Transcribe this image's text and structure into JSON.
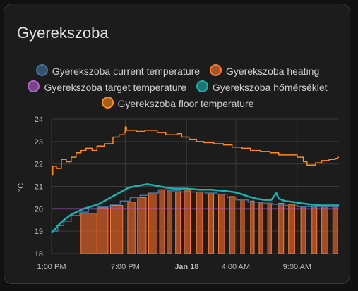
{
  "card": {
    "title": "Gyerekszoba"
  },
  "legend": [
    {
      "label": "Gyerekszoba current temperature",
      "color": "#44739e"
    },
    {
      "label": "Gyerekszoba heating",
      "color": "#ff7a2f"
    },
    {
      "label": "Gyerekszoba target temperature",
      "color": "#b45fd0"
    },
    {
      "label": "Gyerekszoba hőmérséklet",
      "color": "#18b5b0"
    },
    {
      "label": "Gyerekszoba floor temperature",
      "color": "#ff8c1a"
    }
  ],
  "chart_data": {
    "type": "line",
    "ylabel": "°C",
    "ylim": [
      18,
      24
    ],
    "yticks": [
      18,
      19,
      20,
      21,
      22,
      23,
      24
    ],
    "xlim": [
      13.0,
      36.4
    ],
    "xticks": [
      {
        "label": "1:00 PM",
        "value": 13,
        "bold": false
      },
      {
        "label": "7:00 PM",
        "value": 19,
        "bold": false
      },
      {
        "label": "Jan 18",
        "value": 24,
        "bold": true
      },
      {
        "label": "4:00 AM",
        "value": 28,
        "bold": false
      },
      {
        "label": "9:00 AM",
        "value": 33,
        "bold": false
      }
    ],
    "grid": true,
    "series": [
      {
        "name": "Gyerekszoba floor temperature",
        "color": "#ff8c1a",
        "step": true,
        "points": [
          [
            13.0,
            21.5
          ],
          [
            13.1,
            21.9
          ],
          [
            13.4,
            21.8
          ],
          [
            13.8,
            22.2
          ],
          [
            14.2,
            22.1
          ],
          [
            14.6,
            22.3
          ],
          [
            15.0,
            22.5
          ],
          [
            15.4,
            22.6
          ],
          [
            15.8,
            22.7
          ],
          [
            16.3,
            22.6
          ],
          [
            16.7,
            22.8
          ],
          [
            17.3,
            22.9
          ],
          [
            18.0,
            23.2
          ],
          [
            18.5,
            23.3
          ],
          [
            18.9,
            23.4
          ],
          [
            19.0,
            23.65
          ],
          [
            19.1,
            23.5
          ],
          [
            19.9,
            23.45
          ],
          [
            20.6,
            23.5
          ],
          [
            21.6,
            23.4
          ],
          [
            22.3,
            23.3
          ],
          [
            22.8,
            23.3
          ],
          [
            23.2,
            23.35
          ],
          [
            23.6,
            23.2
          ],
          [
            24.2,
            23.1
          ],
          [
            24.8,
            23.0
          ],
          [
            25.4,
            22.95
          ],
          [
            26.2,
            22.9
          ],
          [
            27.0,
            22.85
          ],
          [
            27.7,
            22.75
          ],
          [
            28.5,
            22.7
          ],
          [
            29.2,
            22.6
          ],
          [
            30.0,
            22.55
          ],
          [
            30.8,
            22.5
          ],
          [
            31.5,
            22.4
          ],
          [
            32.2,
            22.4
          ],
          [
            33.0,
            22.3
          ],
          [
            33.5,
            22.1
          ],
          [
            33.8,
            21.95
          ],
          [
            34.5,
            22.05
          ],
          [
            35.0,
            22.15
          ],
          [
            35.6,
            22.2
          ],
          [
            36.1,
            22.25
          ],
          [
            36.3,
            22.3
          ],
          [
            36.4,
            22.3
          ]
        ]
      },
      {
        "name": "Gyerekszoba current temperature",
        "color": "#44739e",
        "step": true,
        "points": [
          [
            13.0,
            19.0
          ],
          [
            13.5,
            19.25
          ],
          [
            14.0,
            19.45
          ],
          [
            14.6,
            19.7
          ],
          [
            15.3,
            19.85
          ],
          [
            16.0,
            20.0
          ],
          [
            16.8,
            20.1
          ],
          [
            17.8,
            20.2
          ],
          [
            18.6,
            20.35
          ],
          [
            19.4,
            20.5
          ],
          [
            20.2,
            20.6
          ],
          [
            21.0,
            20.7
          ],
          [
            21.7,
            20.85
          ],
          [
            22.5,
            20.8
          ],
          [
            23.5,
            20.75
          ],
          [
            24.5,
            20.75
          ],
          [
            25.5,
            20.7
          ],
          [
            26.5,
            20.65
          ],
          [
            27.3,
            20.5
          ],
          [
            28.0,
            20.4
          ],
          [
            29.0,
            20.3
          ],
          [
            30.0,
            20.25
          ],
          [
            31.0,
            20.2
          ],
          [
            32.0,
            20.15
          ],
          [
            33.0,
            20.1
          ],
          [
            34.0,
            20.1
          ],
          [
            35.0,
            20.1
          ],
          [
            36.4,
            20.1
          ]
        ]
      },
      {
        "name": "Gyerekszoba hőmérséklet",
        "color": "#18b5b0",
        "step": false,
        "points": [
          [
            13.0,
            18.95
          ],
          [
            13.3,
            19.1
          ],
          [
            13.6,
            19.3
          ],
          [
            14.0,
            19.5
          ],
          [
            14.5,
            19.7
          ],
          [
            15.0,
            19.85
          ],
          [
            15.6,
            20.0
          ],
          [
            16.2,
            20.1
          ],
          [
            16.8,
            20.2
          ],
          [
            17.3,
            20.35
          ],
          [
            17.8,
            20.5
          ],
          [
            18.3,
            20.65
          ],
          [
            18.8,
            20.8
          ],
          [
            19.3,
            20.95
          ],
          [
            19.8,
            21.0
          ],
          [
            20.3,
            21.05
          ],
          [
            20.8,
            21.1
          ],
          [
            21.3,
            21.05
          ],
          [
            21.8,
            21.0
          ],
          [
            22.3,
            20.95
          ],
          [
            23.0,
            20.9
          ],
          [
            24.0,
            20.9
          ],
          [
            25.0,
            20.85
          ],
          [
            26.0,
            20.85
          ],
          [
            27.0,
            20.8
          ],
          [
            27.8,
            20.75
          ],
          [
            28.5,
            20.65
          ],
          [
            29.0,
            20.55
          ],
          [
            29.7,
            20.45
          ],
          [
            30.3,
            20.4
          ],
          [
            30.9,
            20.4
          ],
          [
            31.3,
            20.7
          ],
          [
            31.5,
            20.45
          ],
          [
            32.0,
            20.35
          ],
          [
            32.7,
            20.3
          ],
          [
            33.3,
            20.25
          ],
          [
            34.0,
            20.2
          ],
          [
            35.0,
            20.15
          ],
          [
            36.4,
            20.15
          ]
        ]
      },
      {
        "name": "Gyerekszoba target temperature",
        "color": "#b45fd0",
        "step": true,
        "points": [
          [
            13.0,
            20.0
          ],
          [
            36.4,
            20.0
          ]
        ]
      }
    ],
    "heating_series": {
      "name": "Gyerekszoba heating",
      "color": "#ff7a2f",
      "baseline": 18,
      "intervals": [
        [
          15.4,
          16.7,
          19.8
        ],
        [
          16.7,
          17.6,
          20.05
        ],
        [
          17.8,
          18.8,
          20.15
        ],
        [
          19.2,
          19.8,
          20.3
        ],
        [
          20.0,
          20.7,
          20.5
        ],
        [
          20.9,
          21.6,
          20.7
        ],
        [
          21.8,
          22.2,
          20.85
        ],
        [
          22.4,
          22.8,
          20.8
        ],
        [
          23.1,
          23.5,
          20.75
        ],
        [
          23.8,
          24.3,
          20.8
        ],
        [
          24.8,
          25.3,
          20.75
        ],
        [
          25.8,
          26.2,
          20.7
        ],
        [
          26.6,
          27.1,
          20.65
        ],
        [
          27.5,
          27.9,
          20.55
        ],
        [
          28.4,
          28.7,
          20.4
        ],
        [
          29.2,
          29.5,
          20.35
        ],
        [
          29.9,
          30.2,
          20.3
        ],
        [
          30.6,
          30.9,
          20.25
        ],
        [
          31.5,
          31.9,
          20.25
        ],
        [
          32.3,
          32.8,
          20.2
        ],
        [
          33.3,
          33.7,
          20.1
        ],
        [
          34.2,
          34.6,
          20.1
        ],
        [
          35.0,
          35.5,
          20.1
        ],
        [
          35.9,
          36.3,
          20.1
        ]
      ]
    }
  }
}
